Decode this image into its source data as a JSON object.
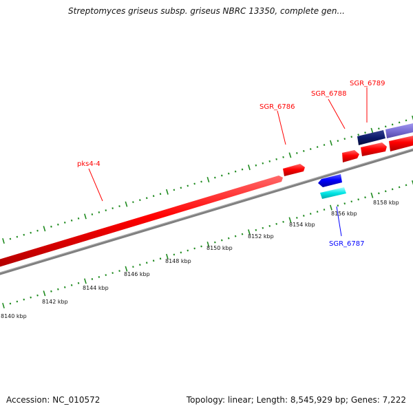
{
  "title": "Streptomyces griseus subsp. griseus NBRC 13350, complete gen...",
  "footer": {
    "accession": "Accession: NC_010572",
    "summary": "Topology: linear; Length: 8,545,929 bp; Genes: 7,222"
  },
  "axis": {
    "unit": "kbp",
    "tick_labels": [
      "8140 kbp",
      "8142 kbp",
      "8144 kbp",
      "8146 kbp",
      "8148 kbp",
      "8150 kbp",
      "8152 kbp",
      "8154 kbp",
      "8156 kbp",
      "8158 kbp"
    ]
  },
  "genes": [
    {
      "name": "pks4-4",
      "strand": "forward",
      "color": "#ff0000"
    },
    {
      "name": "SGR_6786",
      "strand": "forward",
      "color": "#ff0000"
    },
    {
      "name": "SGR_6787",
      "strand": "reverse",
      "color": "#0000ff"
    },
    {
      "name": "SGR_6788",
      "strand": "forward",
      "color": "#ff0000"
    },
    {
      "name": "SGR_6789",
      "strand": "forward",
      "color": "#ff0000"
    }
  ],
  "colors": {
    "backbone": "#808080",
    "forward_gene": "#ff0000",
    "reverse_gene": "#0000ff",
    "tick_marks": "#1e8a1e",
    "feature_navy": "#0b1a6b",
    "feature_violet": "#7b6fd6",
    "feature_cyan": "#00e5e5"
  }
}
